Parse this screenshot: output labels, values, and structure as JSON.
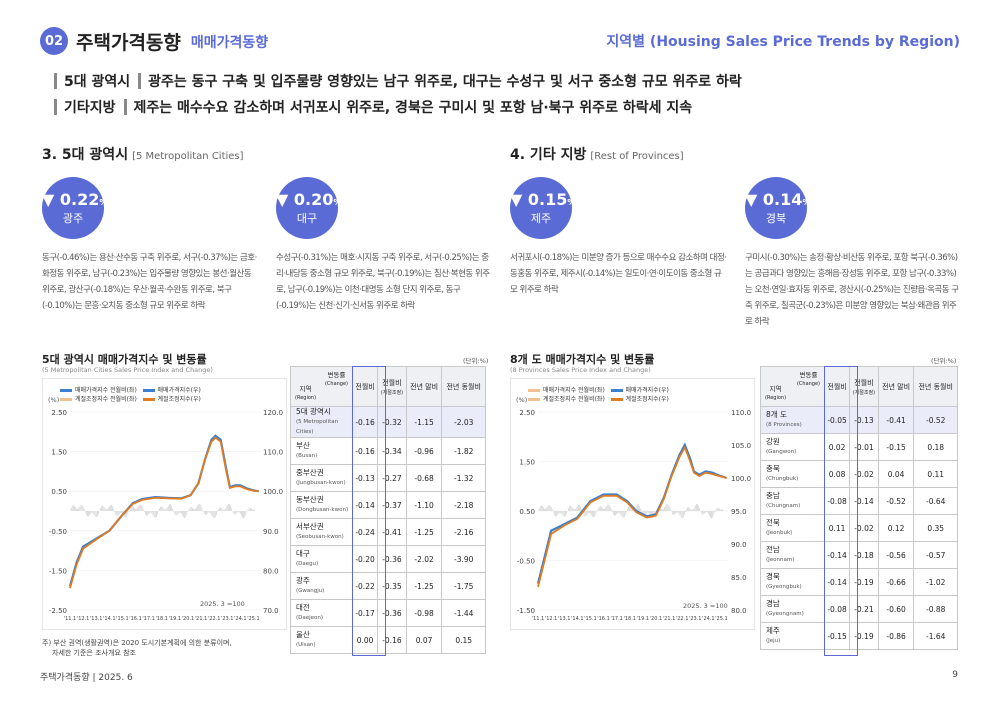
{
  "header": {
    "section_num": "02",
    "title": "주택가격동향",
    "subtitle": "매매가격동향",
    "right": "지역별 (Housing Sales Price Trends by Region)"
  },
  "summary": [
    {
      "tag": "5대 광역시",
      "text": "광주는 동구 구축 및 입주물량 영향있는 남구 위주로, 대구는 수성구 및 서구 중소형 규모 위주로 하락"
    },
    {
      "tag": "기타지방",
      "text": "제주는 매수수요 감소하며 서귀포시 위주로, 경북은 구미시 및 포항 남·북구 위주로 하락세 지속"
    }
  ],
  "left_section": {
    "title": "3. 5대 광역시",
    "en": "[5 Metropolitan Cities]"
  },
  "right_section": {
    "title": "4. 기타 지방",
    "en": "[Rest of Provinces]"
  },
  "circles": [
    {
      "value": "0.22",
      "pct": "%",
      "name": "광주"
    },
    {
      "value": "0.20",
      "pct": "%",
      "name": "대구"
    },
    {
      "value": "0.15",
      "pct": "%",
      "name": "제주"
    },
    {
      "value": "0.14",
      "pct": "%",
      "name": "경북"
    }
  ],
  "descs": [
    "동구(-0.46%)는 용산·산수동 구축 위주로, 서구(-0.37%)는 금호·화정동 위주로, 남구(-0.23%)는 입주물량 영향있는 봉선·월산동 위주로, 광산구(-0.18%)는 우산·월곡·수완동 위주로, 북구(-0.10%)는 문흥·오치동 중소형 규모 위주로 하락",
    "수성구(-0.31%)는 매호·시지동 구축 위주로, 서구(-0.25%)는 중리·내당동 중소형 규모 위주로, 북구(-0.19%)는 침산·복현동 위주로, 남구(-0.19%)는 이천·대명동 소형 단지 위주로, 동구(-0.19%)는 신천·신기·신서동 위주로 하락",
    "서귀포시(-0.18%)는 미분양 증가 등으로 매수수요 감소하며 대정·동홍동 위주로, 제주시(-0.14%)는 일도이·연·이도이동 중소형 규모 위주로 하락",
    "구미시(-0.30%)는 송정·황상·비산동 위주로, 포항 북구(-0.36%)는 공급과다 영향있는 흥해읍·장성동 위주로, 포항 남구(-0.33%)는 오천·연일·효자동 위주로, 경산시(-0.25%)는 진량읍·옥곡동 구축 위주로, 칠곡군(-0.23%)은 미분양 영향있는 북삼·왜관읍 위주로 하락"
  ],
  "chart_left": {
    "title": "5대 광역시 매매가격지수 및 변동률",
    "sub": "(5 Metropolitan Cities Sales Price Index and Change)",
    "unit": "(단위:%)",
    "pct_label": "(%)",
    "legend": [
      "매매가격지수 전월비(좌)",
      "매매가격지수(우)",
      "계절조정지수 전월비(좌)",
      "계절조정지수(우)"
    ],
    "base_note": "2025. 3 =100"
  },
  "chart_right": {
    "title": "8개 도 매매가격지수 및 변동률",
    "sub": "(8 Provinces Sales Price Index and Change)",
    "unit": "(단위:%)",
    "pct_label": "(%)",
    "legend": [
      "매매가격지수 전월비(좌)",
      "매매가격지수(우)",
      "계절조정지수 전월비(좌)",
      "계절조정지수(우)"
    ],
    "base_note": "2025. 3 =100"
  },
  "chart_data": [
    {
      "type": "line",
      "title": "5대 광역시 매매가격지수 및 변동률",
      "x_ticks": [
        "'11.1",
        "'12.1",
        "'13.1",
        "'14.1",
        "'15.1",
        "'16.1",
        "'17.1",
        "'18.1",
        "'19.1",
        "'20.1",
        "'21.1",
        "'22.1",
        "'23.1",
        "'24.1",
        "'25.1"
      ],
      "y_left": {
        "ticks": [
          "2.50",
          "1.50",
          "0.50",
          "-0.50",
          "-1.50",
          "-2.50"
        ],
        "range": [
          -2.5,
          2.5
        ]
      },
      "y_right": {
        "ticks": [
          "120.0",
          "110.0",
          "100.0",
          "90.0",
          "80.0",
          "70.0"
        ],
        "range": [
          70,
          120
        ]
      },
      "series": [
        {
          "name": "매매가격지수(우)",
          "color": "#3a7fd0",
          "x": [
            2011.0,
            2011.5,
            2012.0,
            2013.0,
            2014.0,
            2015.0,
            2015.8,
            2016.5,
            2017.5,
            2018.5,
            2019.5,
            2020.2,
            2020.8,
            2021.3,
            2021.8,
            2022.1,
            2022.5,
            2022.9,
            2023.2,
            2023.6,
            2024.0,
            2024.5,
            2025.0,
            2025.4
          ],
          "y": [
            76,
            82,
            86,
            88,
            90,
            94,
            97,
            98,
            98.5,
            98.3,
            98.2,
            99,
            102,
            108,
            113,
            114,
            113,
            106,
            101,
            101.5,
            101.5,
            100.7,
            100.2,
            100
          ]
        },
        {
          "name": "계절조정지수(우)",
          "color": "#e07b20",
          "x": [
            2011.0,
            2011.5,
            2012.0,
            2013.0,
            2014.0,
            2015.0,
            2015.8,
            2016.5,
            2017.5,
            2018.5,
            2019.5,
            2020.2,
            2020.8,
            2021.3,
            2021.8,
            2022.1,
            2022.5,
            2022.9,
            2023.2,
            2023.6,
            2024.0,
            2024.5,
            2025.0,
            2025.4
          ],
          "y": [
            75.5,
            81.5,
            85.5,
            87.8,
            90,
            94,
            96.8,
            97.8,
            98.3,
            98.2,
            98.1,
            99,
            102,
            108,
            112.5,
            113.5,
            112.5,
            105.5,
            100.8,
            101.2,
            101.2,
            100.5,
            100.1,
            100
          ]
        }
      ]
    },
    {
      "type": "line",
      "title": "8개 도 매매가격지수 및 변동률",
      "x_ticks": [
        "'11.1",
        "'12.1",
        "'13.1",
        "'14.1",
        "'15.1",
        "'16.1",
        "'17.1",
        "'18.1",
        "'19.1",
        "'20.1",
        "'21.1",
        "'22.1",
        "'23.1",
        "'24.1",
        "'25.1"
      ],
      "y_left": {
        "ticks": [
          "2.50",
          "1.50",
          "0.50",
          "-0.50",
          "-1.50"
        ],
        "range": [
          -1.5,
          2.5
        ]
      },
      "y_right": {
        "ticks": [
          "110.0",
          "105.0",
          "100.0",
          "95.0",
          "90.0",
          "85.0",
          "80.0"
        ],
        "range": [
          80,
          110
        ]
      },
      "series": [
        {
          "name": "매매가격지수(우)",
          "color": "#3a7fd0",
          "x": [
            2011.0,
            2011.5,
            2012.0,
            2013.0,
            2014.0,
            2015.0,
            2016.0,
            2017.0,
            2017.8,
            2018.5,
            2019.3,
            2020.0,
            2020.6,
            2021.2,
            2021.8,
            2022.2,
            2022.6,
            2022.9,
            2023.3,
            2023.8,
            2024.3,
            2024.8,
            2025.4
          ],
          "y": [
            84,
            88,
            92,
            93,
            94,
            96.5,
            97.5,
            97.5,
            96.5,
            95,
            94.2,
            94.5,
            97,
            100.5,
            103.5,
            105,
            103,
            101,
            100.5,
            101,
            100.8,
            100.4,
            100
          ]
        },
        {
          "name": "계절조정지수(우)",
          "color": "#e07b20",
          "x": [
            2011.0,
            2011.5,
            2012.0,
            2013.0,
            2014.0,
            2015.0,
            2016.0,
            2017.0,
            2017.8,
            2018.5,
            2019.3,
            2020.0,
            2020.6,
            2021.2,
            2021.8,
            2022.2,
            2022.6,
            2022.9,
            2023.3,
            2023.8,
            2024.3,
            2024.8,
            2025.4
          ],
          "y": [
            83.5,
            87.5,
            91.5,
            92.8,
            93.8,
            96.3,
            97.3,
            97.3,
            96.3,
            94.8,
            94,
            94.3,
            96.8,
            100.3,
            103.2,
            104.6,
            102.6,
            100.8,
            100.3,
            100.8,
            100.6,
            100.3,
            100
          ]
        }
      ]
    }
  ],
  "table_left": {
    "h_region": "지역",
    "h_region_en": "(Region)",
    "h_change": "변동률",
    "h_change_en": "(Change)",
    "cols": [
      "전월비",
      "전월비",
      "전년 말비",
      "전년 동월비"
    ],
    "cols_sub": [
      "",
      "(계절조정)",
      "",
      ""
    ],
    "rows": [
      {
        "name": "5대 광역시",
        "en": "(5 Metropolitan Cities)",
        "v": [
          "-0.16",
          "-0.32",
          "-1.15",
          "-2.03"
        ]
      },
      {
        "name": "부산",
        "en": "(Busan)",
        "v": [
          "-0.16",
          "-0.34",
          "-0.96",
          "-1.82"
        ]
      },
      {
        "name": "중부산권",
        "en": "(Jungbusan-kwon)",
        "v": [
          "-0.13",
          "-0.27",
          "-0.68",
          "-1.32"
        ]
      },
      {
        "name": "동부산권",
        "en": "(Dongbusan-kwon)",
        "v": [
          "-0.14",
          "-0.37",
          "-1.10",
          "-2.18"
        ]
      },
      {
        "name": "서부산권",
        "en": "(Seobusan-kwon)",
        "v": [
          "-0.24",
          "-0.41",
          "-1.25",
          "-2.16"
        ]
      },
      {
        "name": "대구",
        "en": "(Daegu)",
        "v": [
          "-0.20",
          "-0.36",
          "-2.02",
          "-3.90"
        ]
      },
      {
        "name": "광주",
        "en": "(Gwangju)",
        "v": [
          "-0.22",
          "-0.35",
          "-1.25",
          "-1.75"
        ]
      },
      {
        "name": "대전",
        "en": "(Daejeon)",
        "v": [
          "-0.17",
          "-0.36",
          "-0.98",
          "-1.44"
        ]
      },
      {
        "name": "울산",
        "en": "(Ulsan)",
        "v": [
          "0.00",
          "-0.16",
          "0.07",
          "0.15"
        ]
      }
    ]
  },
  "table_right": {
    "h_region": "지역",
    "h_region_en": "(Region)",
    "h_change": "변동률",
    "h_change_en": "(Change)",
    "cols": [
      "전월비",
      "전월비",
      "전년 말비",
      "전년 동월비"
    ],
    "cols_sub": [
      "",
      "(계절조정)",
      "",
      ""
    ],
    "rows": [
      {
        "name": "8개 도",
        "en": "(8 Provinces)",
        "v": [
          "-0.05",
          "-0.13",
          "-0.41",
          "-0.52"
        ]
      },
      {
        "name": "강원",
        "en": "(Gangwon)",
        "v": [
          "0.02",
          "-0.01",
          "-0.15",
          "0.18"
        ]
      },
      {
        "name": "충북",
        "en": "(Chungbuk)",
        "v": [
          "0.08",
          "-0.02",
          "0.04",
          "0.11"
        ]
      },
      {
        "name": "충남",
        "en": "(Chungnam)",
        "v": [
          "-0.08",
          "-0.14",
          "-0.52",
          "-0.64"
        ]
      },
      {
        "name": "전북",
        "en": "(Jeonbuk)",
        "v": [
          "0.11",
          "-0.02",
          "0.12",
          "0.35"
        ]
      },
      {
        "name": "전남",
        "en": "(Jeonnam)",
        "v": [
          "-0.14",
          "-0.18",
          "-0.56",
          "-0.57"
        ]
      },
      {
        "name": "경북",
        "en": "(Gyeongbuk)",
        "v": [
          "-0.14",
          "-0.19",
          "-0.66",
          "-1.02"
        ]
      },
      {
        "name": "경남",
        "en": "(Gyeongnam)",
        "v": [
          "-0.08",
          "-0.21",
          "-0.60",
          "-0.88"
        ]
      },
      {
        "name": "제주",
        "en": "(Jeju)",
        "v": [
          "-0.15",
          "-0.19",
          "-0.86",
          "-1.64"
        ]
      }
    ]
  },
  "note": [
    "주) 부산 권역(생활권역)은 2020 도시기본계획에 의한 분류이며,",
    "자세한 기준은 조사개요 참조"
  ],
  "footer": {
    "left": "주택가격동향   |   2025. 6",
    "page": "9"
  },
  "colors": {
    "accent": "#5b6bd6",
    "blue_line": "#3a7fd0",
    "orange_line": "#e07b20"
  }
}
